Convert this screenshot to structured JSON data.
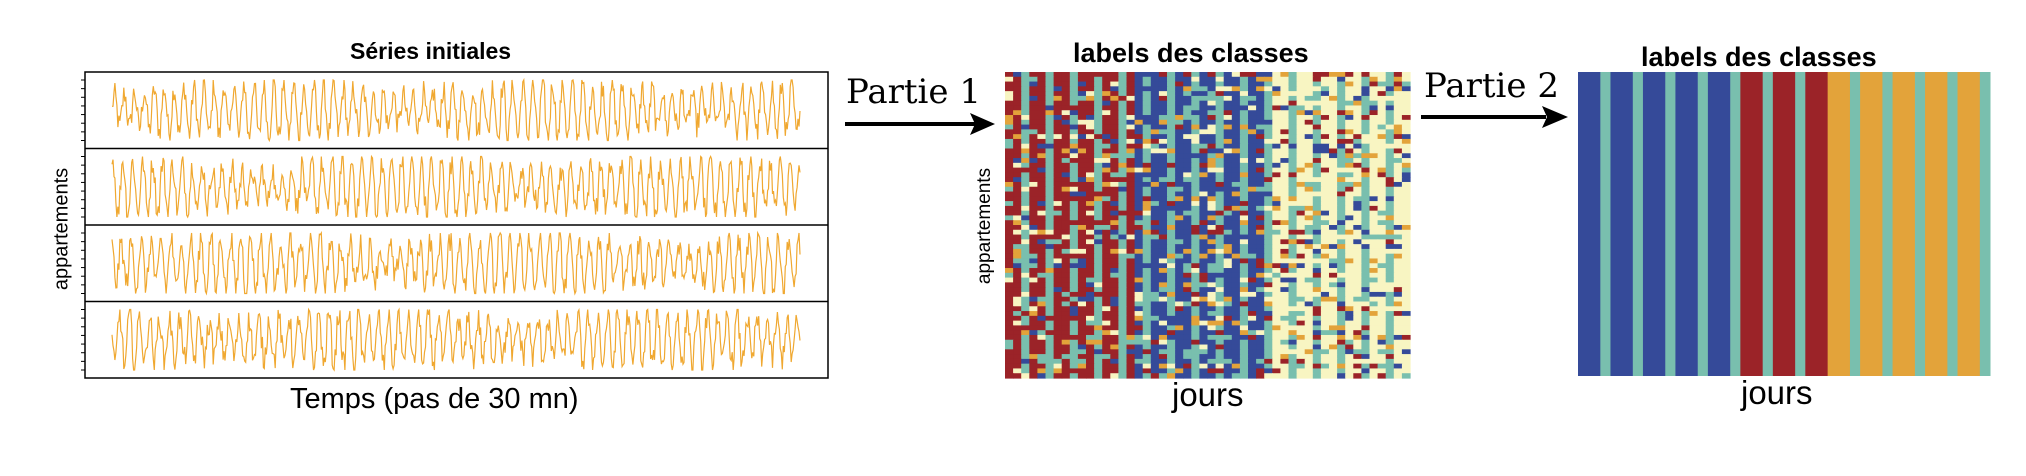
{
  "left_panel": {
    "title": "Séries initiales",
    "ylabel": "appartements",
    "xlabel": "Temps (pas de 30 mn)",
    "series_count": 4,
    "series_color": "#f0a830"
  },
  "arrow1": {
    "label": "Partie 1"
  },
  "middle_panel": {
    "title": "labels des classes",
    "ylabel": "appartements",
    "xlabel": "jours"
  },
  "arrow2": {
    "label": "Partie 2"
  },
  "right_panel": {
    "title": "labels des classes",
    "xlabel": "jours",
    "stripe_sequence": [
      "blue",
      "teal",
      "blue",
      "teal",
      "blue",
      "teal",
      "blue",
      "teal",
      "blue",
      "teal",
      "red",
      "teal",
      "red",
      "teal",
      "red",
      "orange",
      "teal",
      "orange",
      "teal",
      "orange",
      "teal",
      "orange",
      "teal",
      "orange",
      "teal"
    ]
  },
  "palette": {
    "blue": "#354a99",
    "teal": "#79bfae",
    "red": "#9b2328",
    "orange": "#e3a33a",
    "cream": "#f8f5c2"
  }
}
